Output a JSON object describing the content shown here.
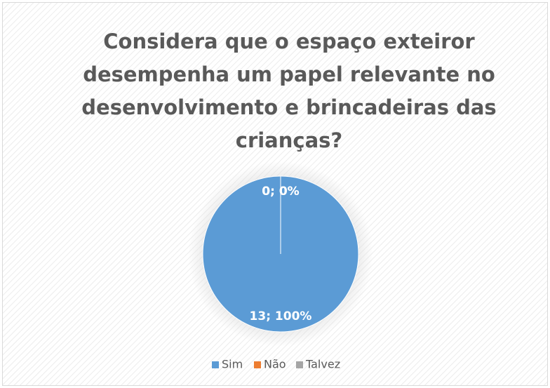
{
  "chart_data": {
    "type": "pie",
    "title": "Considera que o espaço exteiror desempenha um papel relevante no desenvolvimento e brincadeiras das crianças?",
    "categories": [
      "Sim",
      "Não",
      "Talvez"
    ],
    "values": [
      13,
      0,
      0
    ],
    "value_labels": [
      "13; 100%",
      "0; 0%",
      "0; 0%"
    ],
    "colors": [
      "#5b9bd5",
      "#ed7d31",
      "#a5a5a5"
    ],
    "legend": "bottom"
  }
}
